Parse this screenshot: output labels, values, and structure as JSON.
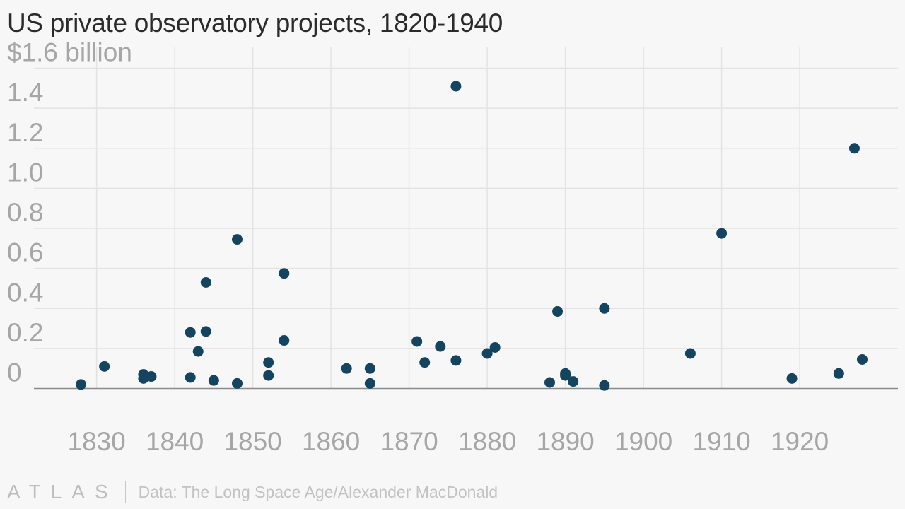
{
  "title": "US private observatory projects, 1820-1940",
  "footer": {
    "logo": "ATLAS",
    "source": "Data: The Long Space Age/Alexander MacDonald"
  },
  "colors": {
    "point": "#154460",
    "grid": "#e3e3e3",
    "baseline": "#8a8a8a",
    "tick_text": "#a6a6a6",
    "title": "#2b2b2b",
    "background": "#f7f7f7"
  },
  "chart_data": {
    "type": "scatter",
    "title": "US private observatory projects, 1820-1940",
    "xlabel": "",
    "ylabel": "",
    "xlim": [
      1825.5,
      1930.5
    ],
    "ylim": [
      0,
      1.6
    ],
    "x_ticks": [
      1830,
      1840,
      1850,
      1860,
      1870,
      1880,
      1890,
      1900,
      1910,
      1920
    ],
    "x_tick_labels": [
      "1830",
      "1840",
      "1850",
      "1860",
      "1870",
      "1880",
      "1890",
      "1900",
      "1910",
      "1920"
    ],
    "y_ticks": [
      0,
      0.2,
      0.4,
      0.6,
      0.8,
      1.0,
      1.2,
      1.4,
      1.6
    ],
    "y_tick_labels": [
      "0",
      "0.2",
      "0.4",
      "0.6",
      "0.8",
      "1.0",
      "1.2",
      "1.4",
      "$1.6 billion"
    ],
    "grid": true,
    "unit": "billion dollars",
    "points": [
      {
        "x": 1828,
        "y": 0.02
      },
      {
        "x": 1831,
        "y": 0.11
      },
      {
        "x": 1836,
        "y": 0.07
      },
      {
        "x": 1836,
        "y": 0.05
      },
      {
        "x": 1837,
        "y": 0.06
      },
      {
        "x": 1842,
        "y": 0.28
      },
      {
        "x": 1842,
        "y": 0.055
      },
      {
        "x": 1843,
        "y": 0.185
      },
      {
        "x": 1844,
        "y": 0.53
      },
      {
        "x": 1844,
        "y": 0.285
      },
      {
        "x": 1845,
        "y": 0.04
      },
      {
        "x": 1848,
        "y": 0.745
      },
      {
        "x": 1848,
        "y": 0.025
      },
      {
        "x": 1852,
        "y": 0.13
      },
      {
        "x": 1852,
        "y": 0.065
      },
      {
        "x": 1854,
        "y": 0.575
      },
      {
        "x": 1854,
        "y": 0.24
      },
      {
        "x": 1862,
        "y": 0.1
      },
      {
        "x": 1865,
        "y": 0.1
      },
      {
        "x": 1865,
        "y": 0.025
      },
      {
        "x": 1871,
        "y": 0.235
      },
      {
        "x": 1872,
        "y": 0.13
      },
      {
        "x": 1874,
        "y": 0.21
      },
      {
        "x": 1876,
        "y": 1.51
      },
      {
        "x": 1876,
        "y": 0.14
      },
      {
        "x": 1880,
        "y": 0.175
      },
      {
        "x": 1881,
        "y": 0.205
      },
      {
        "x": 1888,
        "y": 0.03
      },
      {
        "x": 1889,
        "y": 0.385
      },
      {
        "x": 1890,
        "y": 0.075
      },
      {
        "x": 1890,
        "y": 0.065
      },
      {
        "x": 1891,
        "y": 0.035
      },
      {
        "x": 1895,
        "y": 0.4
      },
      {
        "x": 1895,
        "y": 0.015
      },
      {
        "x": 1906,
        "y": 0.175
      },
      {
        "x": 1910,
        "y": 0.775
      },
      {
        "x": 1919,
        "y": 0.05
      },
      {
        "x": 1925,
        "y": 0.075
      },
      {
        "x": 1927,
        "y": 1.2
      },
      {
        "x": 1928,
        "y": 0.145
      }
    ]
  }
}
